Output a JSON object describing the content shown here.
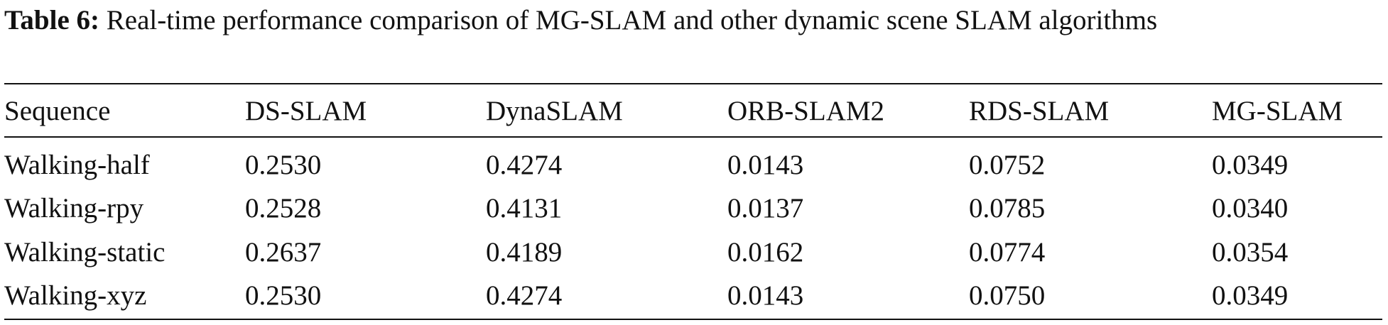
{
  "caption": {
    "label": "Table 6:",
    "text": "Real-time performance comparison of MG-SLAM and other dynamic scene SLAM algorithms"
  },
  "table": {
    "header": [
      "Sequence",
      "DS-SLAM",
      "DynaSLAM",
      "ORB-SLAM2",
      "RDS-SLAM",
      "MG-SLAM"
    ],
    "rows": [
      [
        "Walking-half",
        "0.2530",
        "0.4274",
        "0.0143",
        "0.0752",
        "0.0349"
      ],
      [
        "Walking-rpy",
        "0.2528",
        "0.4131",
        "0.0137",
        "0.0785",
        "0.0340"
      ],
      [
        "Walking-static",
        "0.2637",
        "0.4189",
        "0.0162",
        "0.0774",
        "0.0354"
      ],
      [
        "Walking-xyz",
        "0.2530",
        "0.4274",
        "0.0143",
        "0.0750",
        "0.0349"
      ]
    ]
  }
}
